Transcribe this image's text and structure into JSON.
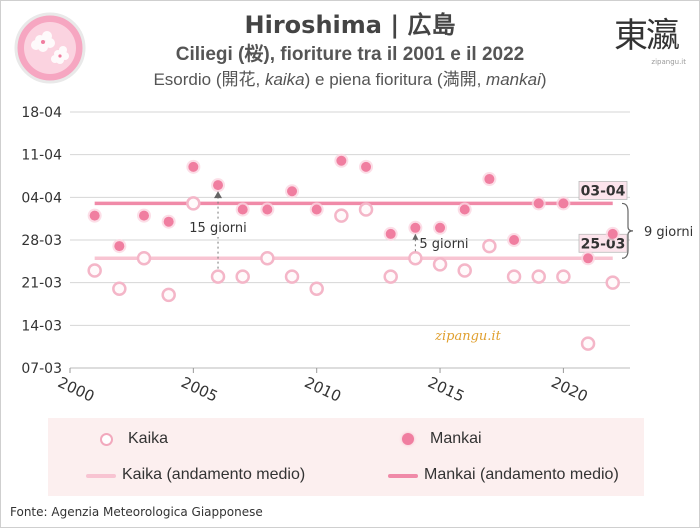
{
  "header": {
    "title": "Hiroshima | 広島",
    "subtitle": "Ciliegi (桜), fioriture tra il 2001 e il 2022",
    "subsub": "Esordio (開花, kaika) e piena fioritura (満開, mankai)"
  },
  "brand": {
    "kanji": "東瀛",
    "small": "zipangu.it"
  },
  "watermark": "zipangu.it",
  "source": "Fonte: Agenzia Meteorologica Giapponese",
  "legend": {
    "kaika": "Kaika",
    "mankai": "Mankai",
    "kaika_trend": "Kaika (andamento medio)",
    "mankai_trend": "Mankai (andamento medio)"
  },
  "colors": {
    "kaika": "#f4b6c8",
    "mankai": "#f07ea0",
    "kaika_line": "#f8c4d2",
    "mankai_line": "#f08aa8",
    "legend_bg": "#fcefef"
  },
  "chart_data": {
    "type": "scatter",
    "title": "Ciliegi (桜), fioriture tra il 2001 e il 2022",
    "x_range": [
      2000,
      2022
    ],
    "x_ticks": [
      2000,
      2005,
      2010,
      2015,
      2020
    ],
    "y_ticks": [
      "07-03",
      "14-03",
      "21-03",
      "28-03",
      "04-04",
      "11-04",
      "18-04"
    ],
    "y_range": [
      "07-03",
      "18-04"
    ],
    "series": [
      {
        "name": "Kaika",
        "marker": "open-circle",
        "x": [
          2001,
          2002,
          2003,
          2004,
          2005,
          2006,
          2007,
          2008,
          2009,
          2010,
          2011,
          2012,
          2013,
          2014,
          2015,
          2016,
          2017,
          2018,
          2019,
          2020,
          2021,
          2022
        ],
        "y": [
          "23-03",
          "20-03",
          "25-03",
          "19-03",
          "03-04",
          "22-03",
          "22-03",
          "25-03",
          "22-03",
          "20-03",
          "01-04",
          "02-04",
          "22-03",
          "25-03",
          "24-03",
          "23-03",
          "27-03",
          "22-03",
          "22-03",
          "22-03",
          "11-03",
          "21-03"
        ]
      },
      {
        "name": "Mankai",
        "marker": "filled-circle",
        "x": [
          2001,
          2002,
          2003,
          2004,
          2005,
          2006,
          2007,
          2008,
          2009,
          2010,
          2011,
          2012,
          2013,
          2014,
          2015,
          2016,
          2017,
          2018,
          2019,
          2020,
          2021,
          2022
        ],
        "y": [
          "01-04",
          "27-03",
          "01-04",
          "31-03",
          "09-04",
          "06-04",
          "02-04",
          "02-04",
          "05-04",
          "02-04",
          "10-04",
          "09-04",
          "29-03",
          "30-03",
          "30-03",
          "02-04",
          "07-04",
          "28-03",
          "03-04",
          "03-04",
          "25-03",
          "29-03"
        ]
      },
      {
        "name": "Kaika (andamento medio)",
        "type": "line",
        "y": "25-03",
        "label": "25-03"
      },
      {
        "name": "Mankai (andamento medio)",
        "type": "line",
        "y": "03-04",
        "label": "03-04"
      }
    ],
    "annotations": [
      "15 giorni",
      "5 giorni",
      "9 giorni"
    ],
    "grid": true,
    "legend_position": "bottom"
  }
}
